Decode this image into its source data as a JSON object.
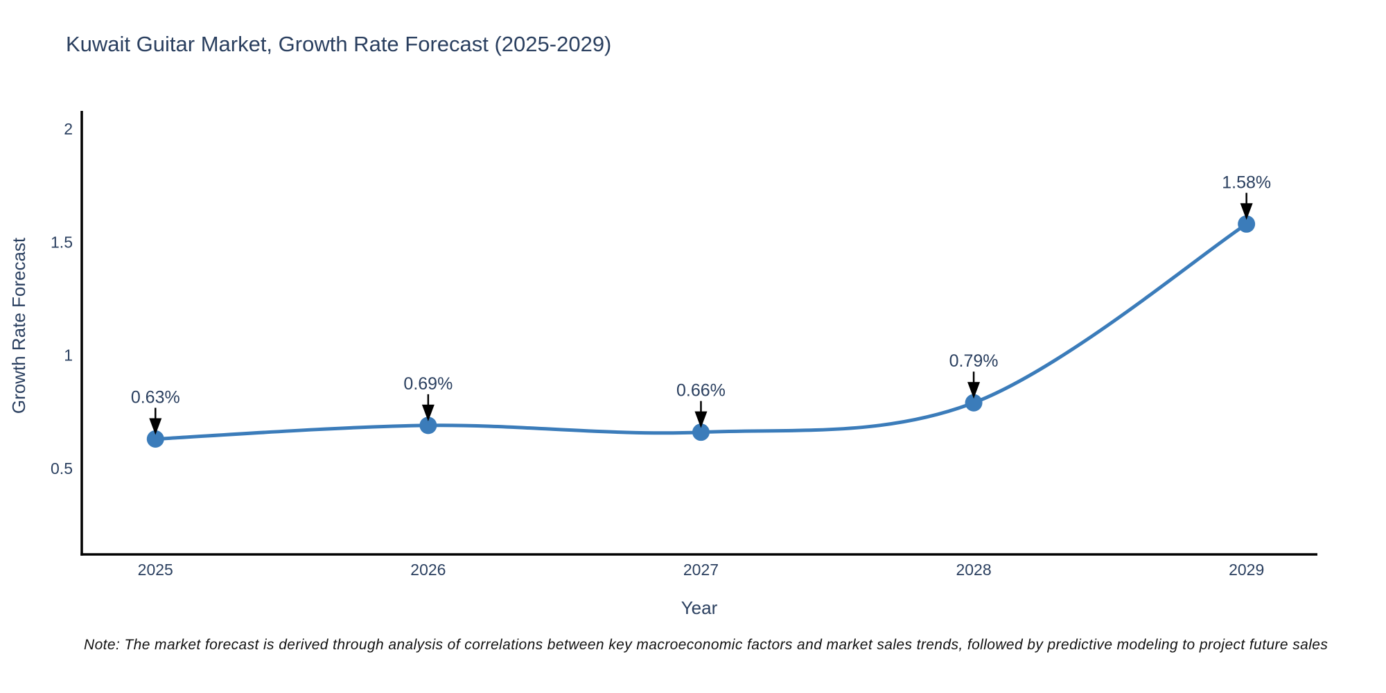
{
  "chart_data": {
    "type": "line",
    "title": "Kuwait Guitar Market, Growth Rate Forecast (2025-2029)",
    "xlabel": "Year",
    "ylabel": "Growth Rate Forecast",
    "x": [
      2025,
      2026,
      2027,
      2028,
      2029
    ],
    "categories": [
      "2025",
      "2026",
      "2027",
      "2028",
      "2029"
    ],
    "series": [
      {
        "name": "Growth Rate Forecast",
        "values": [
          0.63,
          0.69,
          0.66,
          0.79,
          1.58
        ]
      }
    ],
    "point_labels": [
      "0.63%",
      "0.69%",
      "0.66%",
      "0.79%",
      "1.58%"
    ],
    "line_shape": "spline",
    "grid": false,
    "legend_position": "none",
    "xlim": [
      2024.73,
      2029.26
    ],
    "ylim": [
      0.12,
      2.08
    ],
    "xtick_labels": [
      "2025",
      "2026",
      "2027",
      "2028",
      "2029"
    ],
    "xtick_values": [
      2025,
      2026,
      2027,
      2028,
      2029
    ],
    "ytick_labels": [
      "0.5",
      "1",
      "1.5",
      "2"
    ],
    "ytick_values": [
      0.5,
      1,
      1.5,
      2
    ],
    "colors": {
      "line": "#3b7cba",
      "marker": "#3b7cba",
      "axis_line": "#000000",
      "text": "#2a3f5f",
      "annotation_arrow": "#000000",
      "note_text": "#111111",
      "background": "#ffffff"
    }
  },
  "note": {
    "text": "Note: The market forecast is derived through analysis of correlations between key macroeconomic factors and market sales trends, followed by predictive modeling to project future sales"
  }
}
